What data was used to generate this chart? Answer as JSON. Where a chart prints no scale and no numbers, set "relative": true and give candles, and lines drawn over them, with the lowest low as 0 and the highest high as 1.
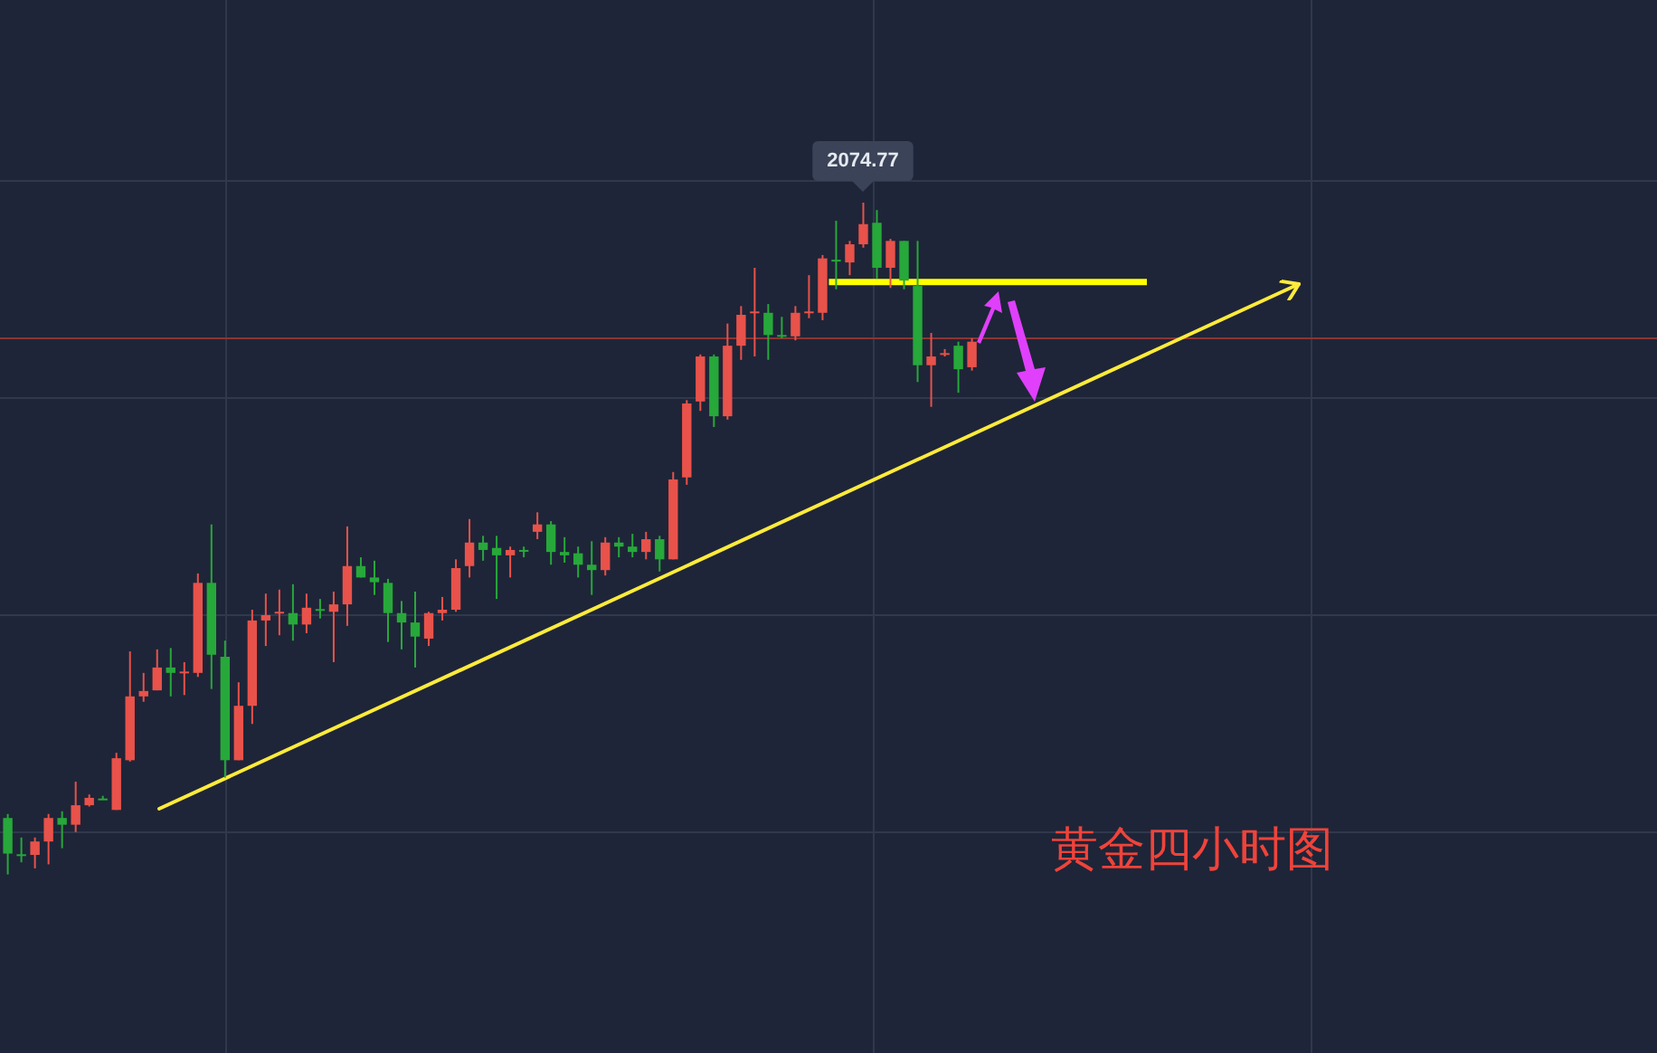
{
  "chart_data": {
    "type": "candlestick",
    "title": "黄金四小时图",
    "relative": true,
    "grid": true,
    "categories": [
      null,
      null,
      null,
      null,
      null,
      null,
      null,
      null,
      null,
      null,
      null,
      null,
      null,
      null,
      null,
      null,
      null,
      null,
      null,
      null,
      null,
      null,
      null,
      null,
      null,
      null,
      null,
      null,
      null,
      null,
      null,
      null,
      null,
      null,
      null,
      null,
      null,
      null,
      null,
      null,
      null,
      null,
      null,
      null,
      null,
      null,
      null,
      null,
      null,
      null,
      null,
      null,
      null,
      null,
      null,
      null,
      null,
      null,
      null,
      null,
      null,
      null,
      null,
      null,
      null,
      null,
      null,
      null,
      null,
      null,
      null,
      null
    ],
    "ohlc": [
      [
        0.084,
        0.09,
        0,
        0.031
      ],
      [
        0.03,
        0.055,
        0.018,
        0.03
      ],
      [
        0.029,
        0.055,
        0.009,
        0.049
      ],
      [
        0.049,
        0.09,
        0.015,
        0.084
      ],
      [
        0.084,
        0.094,
        0.039,
        0.074
      ],
      [
        0.074,
        0.138,
        0.063,
        0.103
      ],
      [
        0.103,
        0.119,
        0.101,
        0.114
      ],
      [
        0.113,
        0.117,
        0.111,
        0.113
      ],
      [
        0.096,
        0.181,
        0.096,
        0.173
      ],
      [
        0.17,
        0.332,
        0.168,
        0.265
      ],
      [
        0.265,
        0.3,
        0.257,
        0.273
      ],
      [
        0.274,
        0.335,
        0.274,
        0.308
      ],
      [
        0.308,
        0.337,
        0.265,
        0.3
      ],
      [
        0.302,
        0.316,
        0.267,
        0.302
      ],
      [
        0.3,
        0.448,
        0.294,
        0.434
      ],
      [
        0.434,
        0.521,
        0.276,
        0.327
      ],
      [
        0.324,
        0.348,
        0.144,
        0.17
      ],
      [
        0.17,
        0.286,
        0.17,
        0.251
      ],
      [
        0.251,
        0.394,
        0.224,
        0.378
      ],
      [
        0.378,
        0.418,
        0.34,
        0.386
      ],
      [
        0.391,
        0.424,
        0.356,
        0.391
      ],
      [
        0.389,
        0.432,
        0.348,
        0.372
      ],
      [
        0.372,
        0.418,
        0.359,
        0.397
      ],
      [
        0.395,
        0.41,
        0.381,
        0.395
      ],
      [
        0.391,
        0.421,
        0.316,
        0.402
      ],
      [
        0.402,
        0.518,
        0.37,
        0.459
      ],
      [
        0.459,
        0.472,
        0.442,
        0.442
      ],
      [
        0.442,
        0.467,
        0.416,
        0.435
      ],
      [
        0.434,
        0.44,
        0.346,
        0.389
      ],
      [
        0.389,
        0.407,
        0.335,
        0.375
      ],
      [
        0.375,
        0.421,
        0.308,
        0.354
      ],
      [
        0.351,
        0.391,
        0.34,
        0.389
      ],
      [
        0.389,
        0.413,
        0.378,
        0.394
      ],
      [
        0.394,
        0.469,
        0.391,
        0.456
      ],
      [
        0.459,
        0.529,
        0.442,
        0.494
      ],
      [
        0.494,
        0.504,
        0.467,
        0.483
      ],
      [
        0.486,
        0.504,
        0.41,
        0.475
      ],
      [
        0.475,
        0.488,
        0.442,
        0.483
      ],
      [
        0.483,
        0.488,
        0.472,
        0.483
      ],
      [
        0.51,
        0.539,
        0.499,
        0.521
      ],
      [
        0.521,
        0.526,
        0.461,
        0.48
      ],
      [
        0.48,
        0.502,
        0.464,
        0.475
      ],
      [
        0.478,
        0.488,
        0.442,
        0.461
      ],
      [
        0.461,
        0.496,
        0.416,
        0.453
      ],
      [
        0.453,
        0.502,
        0.445,
        0.494
      ],
      [
        0.494,
        0.502,
        0.472,
        0.488
      ],
      [
        0.488,
        0.507,
        0.472,
        0.48
      ],
      [
        0.48,
        0.51,
        0.469,
        0.499
      ],
      [
        0.499,
        0.504,
        0.451,
        0.469
      ],
      [
        0.469,
        0.599,
        0.469,
        0.588
      ],
      [
        0.591,
        0.706,
        0.58,
        0.701
      ],
      [
        0.704,
        0.774,
        0.69,
        0.771
      ],
      [
        0.771,
        0.774,
        0.666,
        0.682
      ],
      [
        0.682,
        0.82,
        0.677,
        0.787
      ],
      [
        0.787,
        0.846,
        0.766,
        0.833
      ],
      [
        0.838,
        0.903,
        0.771,
        0.838
      ],
      [
        0.836,
        0.849,
        0.766,
        0.803
      ],
      [
        0.803,
        0.83,
        0.798,
        0.803
      ],
      [
        0.801,
        0.846,
        0.795,
        0.836
      ],
      [
        0.838,
        0.892,
        0.828,
        0.838
      ],
      [
        0.836,
        0.922,
        0.825,
        0.917
      ],
      [
        0.915,
        0.973,
        0.871,
        0.915
      ],
      [
        0.911,
        0.943,
        0.892,
        0.938
      ],
      [
        0.938,
        1,
        0.933,
        0.968
      ],
      [
        0.97,
        0.989,
        0.887,
        0.903
      ],
      [
        0.903,
        0.946,
        0.873,
        0.943
      ],
      [
        0.943,
        0.943,
        0.871,
        0.884
      ],
      [
        0.876,
        0.943,
        0.733,
        0.758
      ],
      [
        0.758,
        0.806,
        0.696,
        0.771
      ],
      [
        0.776,
        0.782,
        0.771,
        0.776
      ],
      [
        0.787,
        0.793,
        0.717,
        0.752
      ],
      [
        0.755,
        0.798,
        0.75,
        0.793
      ]
    ],
    "colors": [
      "#27a83a",
      "#27a83a",
      "#e8524a",
      "#e8524a",
      "#27a83a",
      "#e8524a",
      "#e8524a",
      "#27a83a",
      "#e8524a",
      "#e8524a",
      "#e8524a",
      "#e8524a",
      "#27a83a",
      "#e8524a",
      "#e8524a",
      "#27a83a",
      "#27a83a",
      "#e8524a",
      "#e8524a",
      "#e8524a",
      "#e8524a",
      "#27a83a",
      "#e8524a",
      "#27a83a",
      "#e8524a",
      "#e8524a",
      "#27a83a",
      "#27a83a",
      "#27a83a",
      "#27a83a",
      "#27a83a",
      "#e8524a",
      "#e8524a",
      "#e8524a",
      "#e8524a",
      "#27a83a",
      "#27a83a",
      "#e8524a",
      "#27a83a",
      "#e8524a",
      "#27a83a",
      "#27a83a",
      "#27a83a",
      "#27a83a",
      "#e8524a",
      "#27a83a",
      "#27a83a",
      "#e8524a",
      "#27a83a",
      "#e8524a",
      "#e8524a",
      "#e8524a",
      "#27a83a",
      "#e8524a",
      "#e8524a",
      "#e8524a",
      "#27a83a",
      "#27a83a",
      "#e8524a",
      "#e8524a",
      "#e8524a",
      "#27a83a",
      "#e8524a",
      "#e8524a",
      "#27a83a",
      "#e8524a",
      "#27a83a",
      "#27a83a",
      "#e8524a",
      "#e8524a",
      "#27a83a",
      "#e8524a"
    ],
    "ref_lines": [
      {
        "axis": "y",
        "value": 0.798,
        "color": "#8c3434"
      },
      {
        "axis": "y",
        "value": 0.882,
        "color": "#ffff00"
      }
    ],
    "annotations": [
      {
        "text": "2074.77",
        "y": 1
      }
    ]
  }
}
